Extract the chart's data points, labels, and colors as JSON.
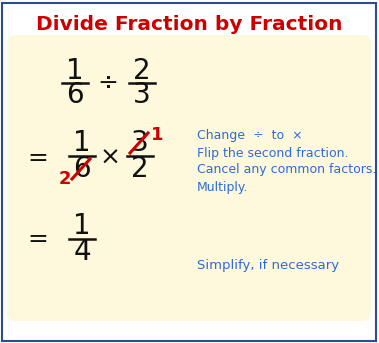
{
  "title": "Divide Fraction by Fraction",
  "title_color": "#cc0000",
  "title_fontsize": 14.5,
  "bg_color": "#fef8dc",
  "border_color": "#2a4d8f",
  "outer_bg": "#ffffff",
  "blue_text_color": "#2a6dd9",
  "black_text_color": "#111111",
  "red_color": "#cc0000",
  "step1_notes": [
    "Change  ÷  to  ×",
    "Flip the second fraction.",
    "Cancel any common factors.",
    "Multiply."
  ],
  "step2_note": "Simplify, if necessary"
}
